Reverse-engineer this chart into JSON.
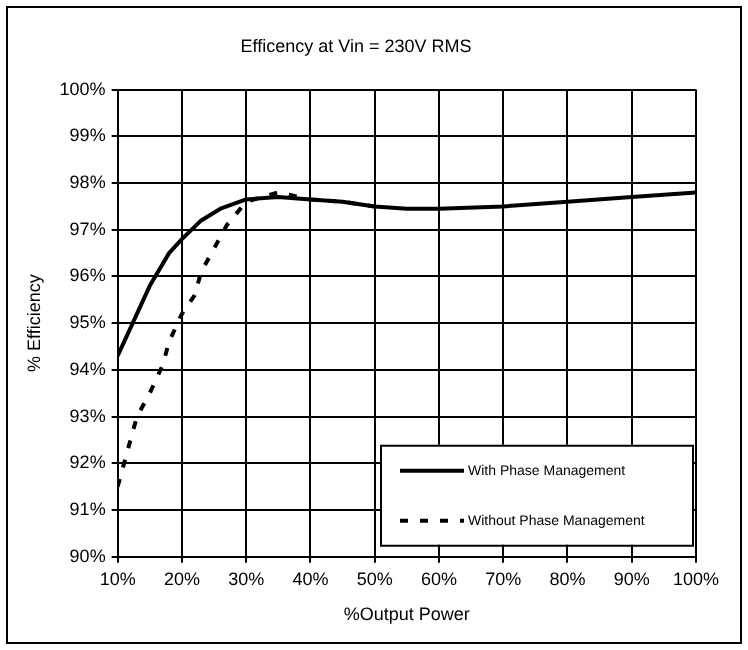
{
  "chart_data": {
    "type": "line",
    "title": "Efficency at Vin = 230V RMS",
    "xlabel": "%Output Power",
    "ylabel": "% Efficiency",
    "xlim": [
      10,
      100
    ],
    "xticks": [
      {
        "value": 10,
        "label": "10%"
      },
      {
        "value": 20,
        "label": "20%"
      },
      {
        "value": 30,
        "label": "30%"
      },
      {
        "value": 40,
        "label": "40%"
      },
      {
        "value": 50,
        "label": "50%"
      },
      {
        "value": 60,
        "label": "60%"
      },
      {
        "value": 70,
        "label": "70%"
      },
      {
        "value": 80,
        "label": "80%"
      },
      {
        "value": 90,
        "label": "90%"
      },
      {
        "value": 100,
        "label": "100%"
      }
    ],
    "ylim": [
      90,
      100
    ],
    "yticks": [
      {
        "value": 90,
        "label": "90%"
      },
      {
        "value": 91,
        "label": "91%"
      },
      {
        "value": 92,
        "label": "92%"
      },
      {
        "value": 93,
        "label": "93%"
      },
      {
        "value": 94,
        "label": "94%"
      },
      {
        "value": 95,
        "label": "95%"
      },
      {
        "value": 96,
        "label": "96%"
      },
      {
        "value": 97,
        "label": "97%"
      },
      {
        "value": 98,
        "label": "98%"
      },
      {
        "value": 99,
        "label": "99%"
      },
      {
        "value": 100,
        "label": "100%"
      }
    ],
    "series": [
      {
        "name": "With Phase Management",
        "color": "#000000",
        "line_style": "solid",
        "x": [
          10,
          12,
          15,
          18,
          20,
          23,
          26,
          30,
          35,
          40,
          45,
          50,
          55,
          60,
          70,
          80,
          90,
          100
        ],
        "values": [
          94.3,
          94.9,
          95.8,
          96.5,
          96.8,
          97.2,
          97.45,
          97.65,
          97.7,
          97.65,
          97.6,
          97.5,
          97.45,
          97.45,
          97.5,
          97.6,
          97.7,
          97.8
        ]
      },
      {
        "name": "Without Phase Management",
        "color": "#000000",
        "line_style": "dashed",
        "x": [
          10,
          11,
          12,
          13,
          15,
          17,
          18,
          20,
          22,
          23,
          25,
          27,
          30,
          35,
          40,
          45,
          50
        ],
        "values": [
          91.5,
          92.0,
          92.5,
          93.0,
          93.5,
          94.1,
          94.6,
          95.2,
          95.6,
          96.1,
          96.6,
          97.1,
          97.6,
          97.8,
          97.65,
          97.6,
          97.5
        ]
      }
    ],
    "grid": true,
    "legend": "bottom right",
    "marker": "none"
  }
}
